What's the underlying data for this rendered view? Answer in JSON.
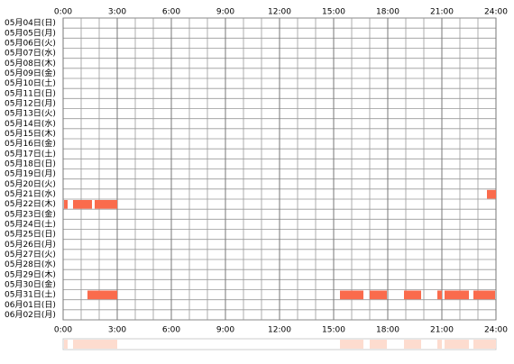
{
  "chart_data": {
    "type": "timeline",
    "categories": [
      "05月04日(日)",
      "05月05日(月)",
      "05月06日(火)",
      "05月07日(水)",
      "05月08日(木)",
      "05月09日(金)",
      "05月10日(土)",
      "05月11日(日)",
      "05月12日(月)",
      "05月13日(火)",
      "05月14日(水)",
      "05月15日(木)",
      "05月16日(金)",
      "05月17日(土)",
      "05月18日(日)",
      "05月19日(月)",
      "05月20日(火)",
      "05月21日(水)",
      "05月22日(木)",
      "05月23日(金)",
      "05月24日(土)",
      "05月25日(日)",
      "05月26日(月)",
      "05月27日(火)",
      "05月28日(水)",
      "05月29日(木)",
      "05月30日(金)",
      "05月31日(土)",
      "06月01日(日)",
      "06月02日(月)"
    ],
    "intervals": [
      [],
      [],
      [],
      [],
      [],
      [],
      [],
      [],
      [],
      [],
      [],
      [],
      [],
      [],
      [],
      [],
      [],
      [
        [
          23.5,
          24
        ]
      ],
      [
        [
          0.05,
          0.25
        ],
        [
          0.55,
          1.6
        ],
        [
          1.75,
          3
        ]
      ],
      [],
      [],
      [],
      [],
      [],
      [],
      [],
      [],
      [
        [
          1.35,
          3
        ],
        [
          15.35,
          16.65
        ],
        [
          17,
          17.95
        ],
        [
          18.9,
          19.85
        ],
        [
          20.75,
          21
        ],
        [
          21.15,
          22.5
        ],
        [
          22.75,
          23.95
        ]
      ],
      [],
      []
    ],
    "color": "#fa6b4c",
    "summary_color": "#fddccf",
    "xlim": [
      0,
      24
    ],
    "xticks": [
      {
        "value": 0,
        "label": "0:00"
      },
      {
        "value": 3,
        "label": "3:00"
      },
      {
        "value": 6,
        "label": "6:00"
      },
      {
        "value": 9,
        "label": "9:00"
      },
      {
        "value": 12,
        "label": "12:00"
      },
      {
        "value": 15,
        "label": "15:00"
      },
      {
        "value": 18,
        "label": "18:00"
      },
      {
        "value": 21,
        "label": "21:00"
      },
      {
        "value": 24,
        "label": "24:00"
      }
    ],
    "grid": true
  }
}
